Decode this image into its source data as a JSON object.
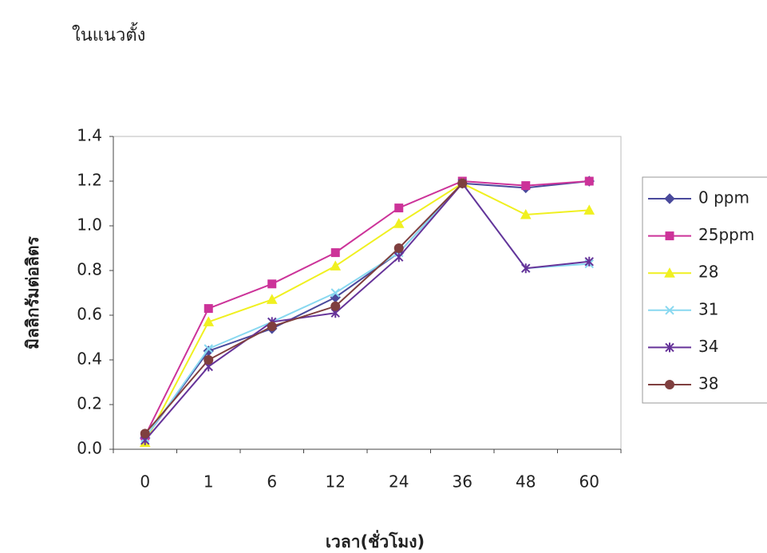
{
  "chart_data": {
    "type": "line",
    "title": "ในแนวตั้ง",
    "x_label": "เวลา(ชั่วโมง)",
    "y_label": "มิลลิกรัมต่อลิตร",
    "categories": [
      "0",
      "1",
      "6",
      "12",
      "24",
      "36",
      "48",
      "60"
    ],
    "series": [
      {
        "name": "0 ppm",
        "color": "#4a4a9c",
        "marker": "diamond",
        "values": [
          0.05,
          0.44,
          0.54,
          0.68,
          0.88,
          1.19,
          1.17,
          1.2
        ]
      },
      {
        "name": "25ppm",
        "color": "#cc3399",
        "marker": "square",
        "values": [
          0.06,
          0.63,
          0.74,
          0.88,
          1.08,
          1.2,
          1.18,
          1.2
        ]
      },
      {
        "name": "28",
        "color": "#f0f020",
        "marker": "triangle",
        "values": [
          0.03,
          0.57,
          0.67,
          0.82,
          1.01,
          1.19,
          1.05,
          1.07
        ]
      },
      {
        "name": "31",
        "color": "#88d8f0",
        "marker": "x",
        "values": [
          0.05,
          0.45,
          0.57,
          0.7,
          0.88,
          1.19,
          0.81,
          0.83
        ]
      },
      {
        "name": "34",
        "color": "#663399",
        "marker": "star",
        "values": [
          0.04,
          0.37,
          0.57,
          0.61,
          0.86,
          1.19,
          0.81,
          0.84
        ]
      },
      {
        "name": "38",
        "color": "#7f3f3f",
        "marker": "circle",
        "values": [
          0.07,
          0.4,
          0.55,
          0.64,
          0.9,
          1.19,
          null,
          null
        ]
      }
    ],
    "ylim": [
      0,
      1.4
    ],
    "yticks": [
      {
        "value": 0,
        "label": "0.0"
      },
      {
        "value": 0.2,
        "label": "0.2"
      },
      {
        "value": 0.4,
        "label": "0.4"
      },
      {
        "value": 0.6,
        "label": "0.6"
      },
      {
        "value": 0.8,
        "label": "0.8"
      },
      {
        "value": 1,
        "label": "1.0"
      },
      {
        "value": 1.2,
        "label": "1.2"
      },
      {
        "value": 1.4,
        "label": "1.4"
      }
    ],
    "grid": false,
    "legend": "right"
  }
}
